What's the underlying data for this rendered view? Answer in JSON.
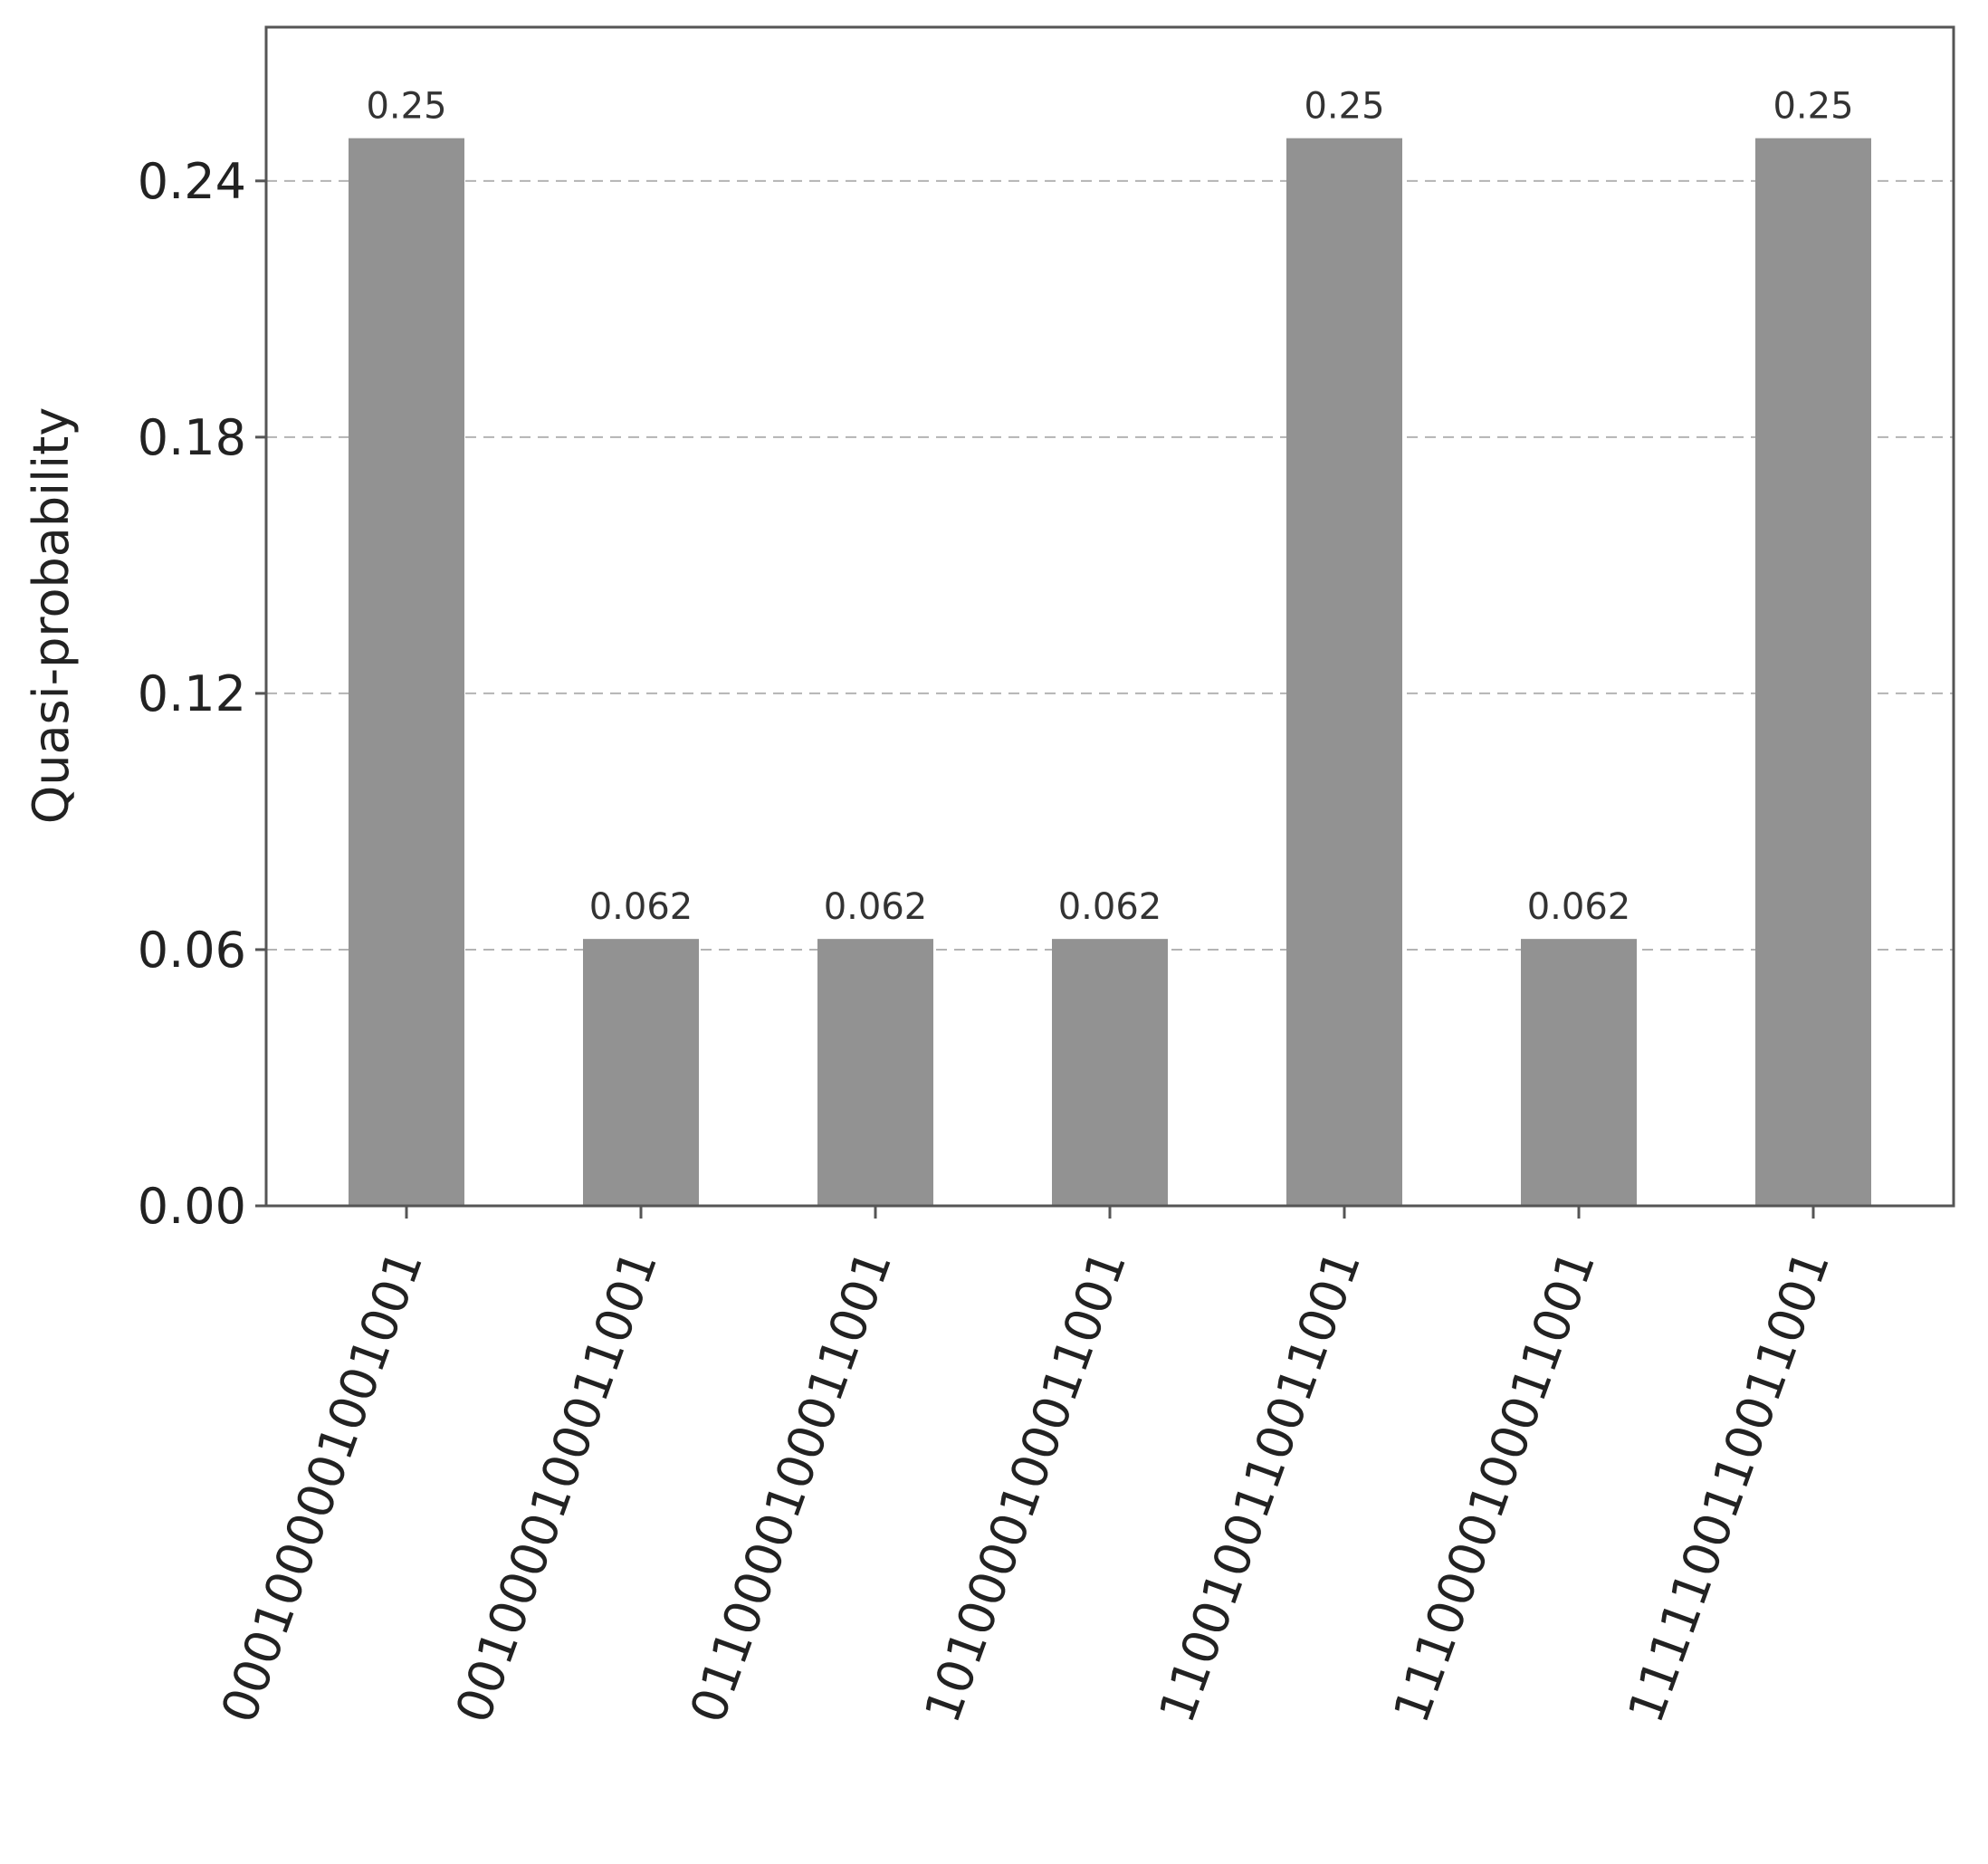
{
  "chart_data": {
    "type": "bar",
    "categories": [
      "0001000001001001",
      "0010000100011001",
      "0110000100011001",
      "1010000100011001",
      "1100100110011001",
      "1110000100011001",
      "1111100110011001"
    ],
    "values": [
      0.25,
      0.0625,
      0.0625,
      0.0625,
      0.25,
      0.0625,
      0.25
    ],
    "data_labels": [
      "0.25",
      "0.062",
      "0.062",
      "0.062",
      "0.25",
      "0.062",
      "0.25"
    ],
    "xlabel": "",
    "ylabel": "Quasi-probability",
    "ylim": [
      0,
      0.276
    ],
    "yticks": [
      0.0,
      0.06,
      0.12,
      0.18,
      0.24
    ],
    "ytick_labels": [
      "0.00",
      "0.06",
      "0.12",
      "0.18",
      "0.24"
    ],
    "grid": "horizontal dashed",
    "legend": false,
    "colors": {
      "bar": "#929292",
      "grid": "#b4b4b4",
      "axis": "#555555"
    }
  }
}
